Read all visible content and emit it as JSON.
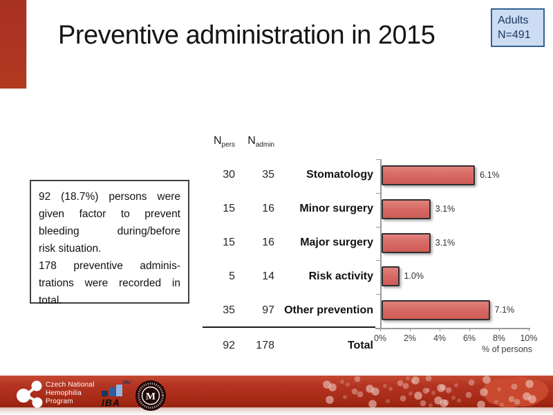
{
  "slide": {
    "title": "Preventive administration in 2015",
    "badge": {
      "line1": "Adults",
      "line2": "N=491"
    }
  },
  "note": {
    "lines": [
      "92 (18.7%) persons were",
      "given factor to prevent",
      "bleeding during/before",
      "risk situation.",
      "178 preventive adminis-",
      "trations were recorded in",
      "total."
    ]
  },
  "table": {
    "col1_header": {
      "base": "N",
      "sub": "pers"
    },
    "col2_header": {
      "base": "N",
      "sub": "admin"
    },
    "rows": [
      {
        "npers": "30",
        "nadmin": "35",
        "label": "Stomatology"
      },
      {
        "npers": "15",
        "nadmin": "16",
        "label": "Minor surgery"
      },
      {
        "npers": "15",
        "nadmin": "16",
        "label": "Major surgery"
      },
      {
        "npers": "5",
        "nadmin": "14",
        "label": "Risk activity"
      },
      {
        "npers": "35",
        "nadmin": "97",
        "label": "Other prevention"
      },
      {
        "npers": "92",
        "nadmin": "178",
        "label": "Total"
      }
    ]
  },
  "chart_data": {
    "type": "bar",
    "orientation": "horizontal",
    "categories": [
      "Stomatology",
      "Minor surgery",
      "Major surgery",
      "Risk activity",
      "Other prevention"
    ],
    "values": [
      6.1,
      3.1,
      3.1,
      1.0,
      7.1
    ],
    "value_labels": [
      "6.1%",
      "3.1%",
      "3.1%",
      "1.0%",
      "7.1%"
    ],
    "n_pers": [
      30,
      15,
      15,
      5,
      35
    ],
    "n_admin": [
      35,
      16,
      16,
      14,
      97
    ],
    "total_pers": 92,
    "total_admin": 178,
    "x_ticks": [
      "0%",
      "2%",
      "4%",
      "6%",
      "8%",
      "10%"
    ],
    "xlim": [
      0,
      10
    ],
    "xlabel": "% of persons",
    "grid": false,
    "legend": "none",
    "bar_color": "#d76a65",
    "bar_border": "#2f2f2f"
  },
  "footer": {
    "program_lines": [
      "Czech National",
      "Hemophilia",
      "Program"
    ],
    "iba_label": "IBA",
    "mu_label": "MU"
  },
  "colors": {
    "accent_red": "#b23422",
    "badge_bg": "#cbdcf3",
    "badge_border": "#365f91",
    "badge_text": "#17365d"
  }
}
